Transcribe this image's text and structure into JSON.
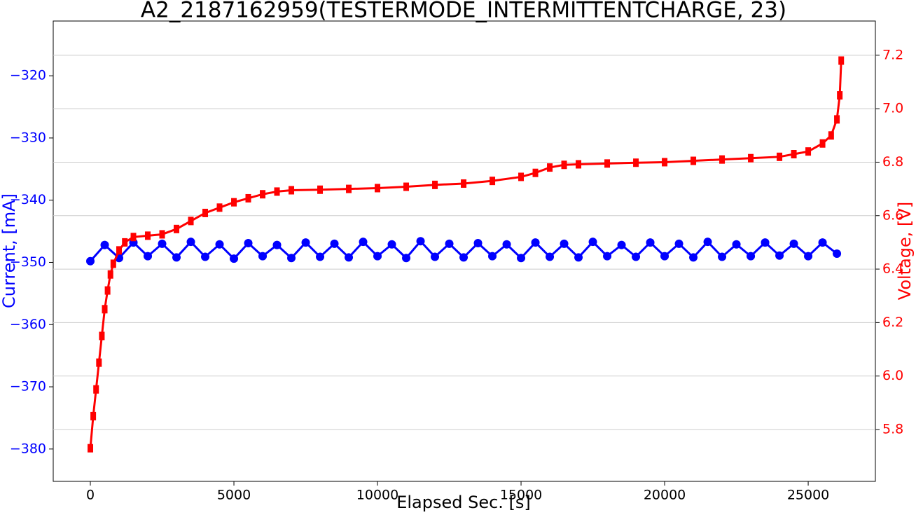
{
  "chart_data": {
    "type": "line",
    "title": "A2_2187162959(TESTERMODE_INTERMITTENTCHARGE, 23)",
    "x_label": "Elapsed Sec. [s]",
    "y_label": "Current, [mA]",
    "y2_label": "Voltage, [V]",
    "xlim": [
      -1293,
      27340
    ],
    "xticks": [
      0,
      5000,
      10000,
      15000,
      20000,
      25000
    ],
    "ylim": [
      -385.2,
      -311.2
    ],
    "yticks": [
      {
        "value": -380,
        "label": "−380"
      },
      {
        "value": -370,
        "label": "−370"
      },
      {
        "value": -360,
        "label": "−360"
      },
      {
        "value": -350,
        "label": "−350"
      },
      {
        "value": -340,
        "label": "−340"
      },
      {
        "value": -330,
        "label": "−330"
      },
      {
        "value": -320,
        "label": "−320"
      }
    ],
    "y2lim": [
      5.606,
      7.328
    ],
    "y2ticks": [
      5.8,
      {
        "value": 6.0,
        "label": "6.0"
      },
      6.2,
      6.4,
      6.6,
      6.8,
      {
        "value": 7.0,
        "label": "7.0"
      },
      7.2
    ],
    "grid": true,
    "series": [
      {
        "name": "Current",
        "color": "#0000ff",
        "marker": "circle",
        "x": [
          0,
          500,
          1000,
          1500,
          2000,
          2500,
          3000,
          3500,
          4000,
          4500,
          5000,
          5500,
          6000,
          6500,
          7000,
          7500,
          8000,
          8500,
          9000,
          9500,
          10000,
          10500,
          11000,
          11500,
          12000,
          12500,
          13000,
          13500,
          14000,
          14500,
          15000,
          15500,
          16000,
          16500,
          17000,
          17500,
          18000,
          18500,
          19000,
          19500,
          20000,
          20500,
          21000,
          21500,
          22000,
          22500,
          23000,
          23500,
          24000,
          24500,
          25000,
          25500,
          26000
        ],
        "values": [
          -349.8,
          -347.2,
          -349.3,
          -346.8,
          -349.0,
          -347.0,
          -349.2,
          -346.7,
          -349.1,
          -347.1,
          -349.4,
          -346.9,
          -349.0,
          -347.2,
          -349.3,
          -346.8,
          -349.1,
          -347.0,
          -349.2,
          -346.7,
          -349.0,
          -347.1,
          -349.3,
          -346.6,
          -349.1,
          -347.0,
          -349.2,
          -346.9,
          -349.0,
          -347.1,
          -349.3,
          -346.8,
          -349.1,
          -347.0,
          -349.2,
          -346.7,
          -349.0,
          -347.2,
          -349.1,
          -346.8,
          -349.0,
          -347.0,
          -349.2,
          -346.7,
          -349.1,
          -347.1,
          -349.0,
          -346.8,
          -348.9,
          -347.0,
          -349.0,
          -346.8,
          -348.6
        ]
      },
      {
        "name": "Voltage",
        "color": "#ff0000",
        "marker": "square",
        "axis": "y2",
        "x": [
          0,
          100,
          200,
          300,
          400,
          500,
          600,
          700,
          800,
          1000,
          1200,
          1500,
          2000,
          2500,
          3000,
          3500,
          4000,
          4500,
          5000,
          5500,
          6000,
          6500,
          7000,
          8000,
          9000,
          10000,
          11000,
          12000,
          13000,
          14000,
          15000,
          15500,
          16000,
          16500,
          17000,
          18000,
          19000,
          20000,
          21000,
          22000,
          23000,
          24000,
          24500,
          25000,
          25500,
          25800,
          26000,
          26100,
          26150
        ],
        "values": [
          5.73,
          5.85,
          5.95,
          6.05,
          6.15,
          6.25,
          6.32,
          6.38,
          6.42,
          6.47,
          6.5,
          6.52,
          6.525,
          6.53,
          6.55,
          6.58,
          6.61,
          6.63,
          6.65,
          6.665,
          6.68,
          6.69,
          6.695,
          6.697,
          6.7,
          6.703,
          6.708,
          6.715,
          6.72,
          6.73,
          6.745,
          6.76,
          6.78,
          6.79,
          6.792,
          6.795,
          6.798,
          6.8,
          6.805,
          6.81,
          6.815,
          6.82,
          6.83,
          6.84,
          6.87,
          6.9,
          6.96,
          7.05,
          7.18
        ]
      }
    ]
  }
}
